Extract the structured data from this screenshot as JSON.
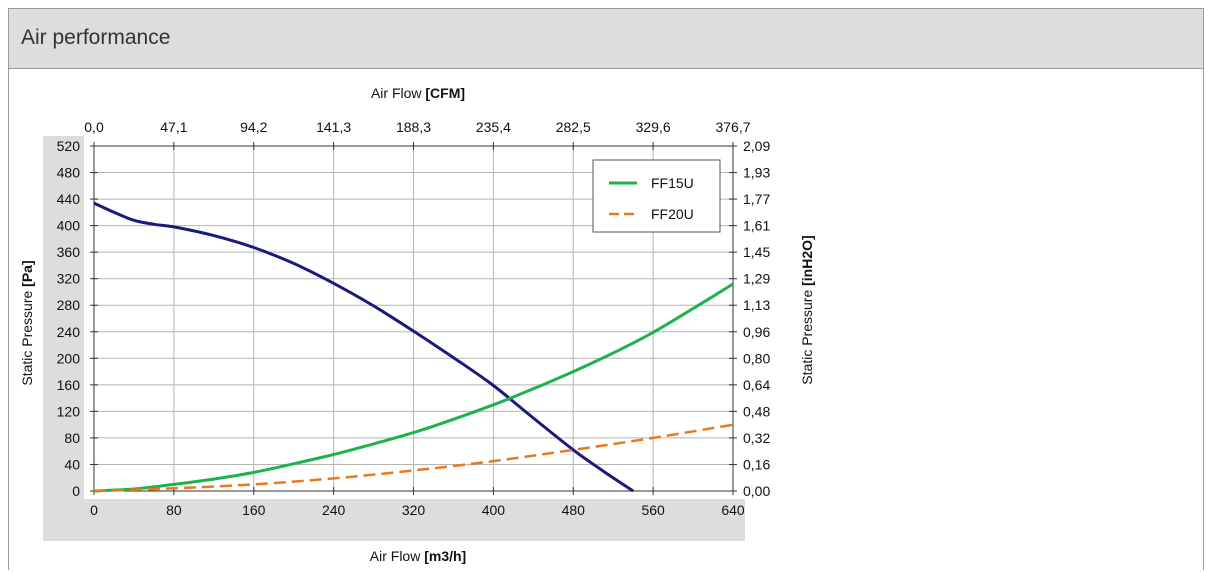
{
  "panel": {
    "title": "Air performance"
  },
  "chart_data": {
    "type": "line",
    "x_axis": {
      "label": "Air Flow",
      "unit": "[m3/h]",
      "min": 0,
      "max": 640,
      "ticks": [
        "0",
        "80",
        "160",
        "240",
        "320",
        "400",
        "480",
        "560",
        "640"
      ]
    },
    "x2_axis": {
      "label": "Air Flow",
      "unit": "[CFM]",
      "ticks": [
        "0,0",
        "47,1",
        "94,2",
        "141,3",
        "188,3",
        "235,4",
        "282,5",
        "329,6",
        "376,7"
      ]
    },
    "y_axis": {
      "label": "Static Pressure",
      "unit": "[Pa]",
      "min": 0,
      "max": 520,
      "ticks": [
        "0",
        "40",
        "80",
        "120",
        "160",
        "200",
        "240",
        "280",
        "320",
        "360",
        "400",
        "440",
        "480",
        "520"
      ]
    },
    "y2_axis": {
      "label": "Static Pressure",
      "unit": "[inH2O]",
      "ticks": [
        "0,00",
        "0,16",
        "0,32",
        "0,48",
        "0,64",
        "0,80",
        "0,96",
        "1,13",
        "1,29",
        "1,45",
        "1,61",
        "1,77",
        "1,93",
        "2,09"
      ]
    },
    "legend": {
      "position": "top-right"
    },
    "grid": true,
    "series": [
      {
        "name": "",
        "color": "#1a1a7a",
        "dash": "solid",
        "x": [
          0,
          20,
          40,
          60,
          80,
          120,
          160,
          200,
          240,
          280,
          320,
          360,
          400,
          440,
          480,
          510,
          540
        ],
        "y": [
          434,
          420,
          408,
          402,
          398,
          385,
          367,
          343,
          313,
          279,
          241,
          201,
          159,
          110,
          62,
          30,
          0
        ]
      },
      {
        "name": "FF15U",
        "color": "#1db34c",
        "dash": "solid",
        "x": [
          0,
          40,
          80,
          120,
          160,
          200,
          240,
          280,
          320,
          360,
          400,
          440,
          480,
          520,
          560,
          600,
          640
        ],
        "y": [
          0,
          3,
          10,
          18,
          28,
          41,
          55,
          71,
          88,
          108,
          130,
          154,
          180,
          208,
          239,
          275,
          312
        ]
      },
      {
        "name": "FF20U",
        "color": "#e87a1c",
        "dash": "dashed",
        "x": [
          0,
          80,
          160,
          240,
          320,
          400,
          480,
          560,
          640
        ],
        "y": [
          0,
          4,
          10,
          19,
          31,
          45,
          62,
          80,
          100
        ]
      }
    ]
  }
}
